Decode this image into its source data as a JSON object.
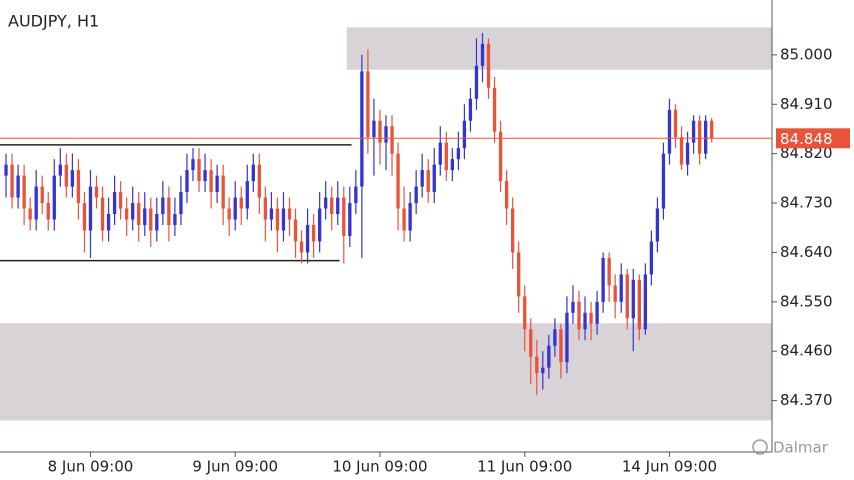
{
  "chart_data": {
    "type": "candlestick",
    "title": "AUDJPY, H1",
    "watermark": "Dalmar",
    "up_color": "#3434d0",
    "down_color": "#e8543a",
    "xlim": [
      -1,
      127
    ],
    "ylim": [
      84.28,
      85.1
    ],
    "xticks": [
      {
        "value": 14,
        "label": "8 Jun 09:00"
      },
      {
        "value": 38,
        "label": "9 Jun 09:00"
      },
      {
        "value": 62,
        "label": "10 Jun 09:00"
      },
      {
        "value": 86,
        "label": "11 Jun 09:00"
      },
      {
        "value": 110,
        "label": "14 Jun 09:00"
      }
    ],
    "yticks": [
      {
        "value": 85.0,
        "label": "85.000"
      },
      {
        "value": 84.91,
        "label": "84.910"
      },
      {
        "value": 84.82,
        "label": "84.820"
      },
      {
        "value": 84.73,
        "label": "84.730"
      },
      {
        "value": 84.64,
        "label": "84.640"
      },
      {
        "value": 84.55,
        "label": "84.550"
      },
      {
        "value": 84.46,
        "label": "84.460"
      },
      {
        "value": 84.37,
        "label": "84.370"
      }
    ],
    "last_price": {
      "value": 84.848,
      "label": "84.848"
    },
    "last_price_color": "#e8543a",
    "zones": [
      {
        "low": 84.973,
        "high": 85.05,
        "start": 56.5,
        "end": 127
      },
      {
        "low": 84.334,
        "high": 84.511,
        "start": -1,
        "end": 127
      }
    ],
    "zone_color": "#d8d3d7",
    "levels": [
      {
        "value": 84.836,
        "start": -1,
        "end": 57.3
      },
      {
        "value": 84.625,
        "start": -1,
        "end": 55.3
      }
    ],
    "candles": [
      [
        84.78,
        84.82,
        84.74,
        84.8
      ],
      [
        84.8,
        84.82,
        84.72,
        84.74
      ],
      [
        84.74,
        84.8,
        84.72,
        84.78
      ],
      [
        84.78,
        84.8,
        84.69,
        84.72
      ],
      [
        84.72,
        84.74,
        84.68,
        84.7
      ],
      [
        84.7,
        84.79,
        84.68,
        84.76
      ],
      [
        84.76,
        84.78,
        84.71,
        84.73
      ],
      [
        84.73,
        84.75,
        84.68,
        84.7
      ],
      [
        84.7,
        84.81,
        84.68,
        84.78
      ],
      [
        84.78,
        84.83,
        84.76,
        84.8
      ],
      [
        84.8,
        84.82,
        84.74,
        84.76
      ],
      [
        84.76,
        84.82,
        84.74,
        84.79
      ],
      [
        84.79,
        84.81,
        84.7,
        84.73
      ],
      [
        84.73,
        84.75,
        84.64,
        84.68
      ],
      [
        84.68,
        84.79,
        84.63,
        84.76
      ],
      [
        84.76,
        84.78,
        84.72,
        84.74
      ],
      [
        84.74,
        84.76,
        84.66,
        84.68
      ],
      [
        84.68,
        84.74,
        84.66,
        84.71
      ],
      [
        84.71,
        84.78,
        84.69,
        84.75
      ],
      [
        84.75,
        84.77,
        84.7,
        84.72
      ],
      [
        84.72,
        84.74,
        84.67,
        84.7
      ],
      [
        84.7,
        84.76,
        84.68,
        84.73
      ],
      [
        84.73,
        84.75,
        84.66,
        84.69
      ],
      [
        84.69,
        84.75,
        84.67,
        84.72
      ],
      [
        84.72,
        84.74,
        84.65,
        84.68
      ],
      [
        84.68,
        84.74,
        84.66,
        84.71
      ],
      [
        84.71,
        84.77,
        84.69,
        84.74
      ],
      [
        84.74,
        84.76,
        84.66,
        84.69
      ],
      [
        84.69,
        84.74,
        84.67,
        84.71
      ],
      [
        84.71,
        84.78,
        84.69,
        84.75
      ],
      [
        84.75,
        84.82,
        84.73,
        84.79
      ],
      [
        84.79,
        84.83,
        84.77,
        84.81
      ],
      [
        84.81,
        84.83,
        84.75,
        84.77
      ],
      [
        84.77,
        84.82,
        84.75,
        84.79
      ],
      [
        84.79,
        84.81,
        84.72,
        84.75
      ],
      [
        84.75,
        84.8,
        84.73,
        84.78
      ],
      [
        84.78,
        84.8,
        84.69,
        84.72
      ],
      [
        84.72,
        84.74,
        84.67,
        84.7
      ],
      [
        84.7,
        84.77,
        84.68,
        84.74
      ],
      [
        84.74,
        84.76,
        84.69,
        84.72
      ],
      [
        84.72,
        84.8,
        84.7,
        84.77
      ],
      [
        84.77,
        84.82,
        84.75,
        84.8
      ],
      [
        84.8,
        84.82,
        84.71,
        84.74
      ],
      [
        84.74,
        84.76,
        84.66,
        84.7
      ],
      [
        84.7,
        84.75,
        84.68,
        84.72
      ],
      [
        84.72,
        84.74,
        84.64,
        84.68
      ],
      [
        84.68,
        84.75,
        84.66,
        84.72
      ],
      [
        84.72,
        84.74,
        84.67,
        84.7
      ],
      [
        84.7,
        84.72,
        84.63,
        84.66
      ],
      [
        84.66,
        84.68,
        84.62,
        84.64
      ],
      [
        84.64,
        84.72,
        84.62,
        84.69
      ],
      [
        84.69,
        84.71,
        84.63,
        84.66
      ],
      [
        84.66,
        84.75,
        84.64,
        84.72
      ],
      [
        84.72,
        84.77,
        84.7,
        84.74
      ],
      [
        84.74,
        84.76,
        84.68,
        84.71
      ],
      [
        84.71,
        84.77,
        84.69,
        84.74
      ],
      [
        84.74,
        84.76,
        84.62,
        84.67
      ],
      [
        84.67,
        84.76,
        84.65,
        84.73
      ],
      [
        84.73,
        84.79,
        84.71,
        84.76
      ],
      [
        84.76,
        85.0,
        84.63,
        84.97
      ],
      [
        84.97,
        85.01,
        84.82,
        84.85
      ],
      [
        84.85,
        84.92,
        84.78,
        84.88
      ],
      [
        84.88,
        84.9,
        84.8,
        84.84
      ],
      [
        84.84,
        84.89,
        84.79,
        84.87
      ],
      [
        84.87,
        84.89,
        84.78,
        84.82
      ],
      [
        84.82,
        84.84,
        84.68,
        84.72
      ],
      [
        84.72,
        84.76,
        84.66,
        84.68
      ],
      [
        84.68,
        84.75,
        84.66,
        84.73
      ],
      [
        84.73,
        84.79,
        84.71,
        84.76
      ],
      [
        84.76,
        84.82,
        84.74,
        84.79
      ],
      [
        84.79,
        84.81,
        84.73,
        84.75
      ],
      [
        84.75,
        84.83,
        84.73,
        84.8
      ],
      [
        84.8,
        84.87,
        84.78,
        84.84
      ],
      [
        84.84,
        84.86,
        84.77,
        84.79
      ],
      [
        84.79,
        84.83,
        84.77,
        84.81
      ],
      [
        84.81,
        84.86,
        84.79,
        84.83
      ],
      [
        84.83,
        84.91,
        84.81,
        84.88
      ],
      [
        84.88,
        84.94,
        84.86,
        84.92
      ],
      [
        84.92,
        85.03,
        84.9,
        84.98
      ],
      [
        84.98,
        85.04,
        84.95,
        85.02
      ],
      [
        85.02,
        85.03,
        84.92,
        84.94
      ],
      [
        84.94,
        84.96,
        84.84,
        84.86
      ],
      [
        84.86,
        84.88,
        84.75,
        84.77
      ],
      [
        84.77,
        84.79,
        84.69,
        84.72
      ],
      [
        84.72,
        84.74,
        84.61,
        84.64
      ],
      [
        84.64,
        84.66,
        84.53,
        84.56
      ],
      [
        84.56,
        84.58,
        84.46,
        84.5
      ],
      [
        84.5,
        84.52,
        84.4,
        84.45
      ],
      [
        84.45,
        84.48,
        84.38,
        84.42
      ],
      [
        84.42,
        84.46,
        84.39,
        84.43
      ],
      [
        84.43,
        84.49,
        84.41,
        84.47
      ],
      [
        84.47,
        84.52,
        84.45,
        84.5
      ],
      [
        84.5,
        84.51,
        84.41,
        84.44
      ],
      [
        84.44,
        84.56,
        84.42,
        84.53
      ],
      [
        84.53,
        84.58,
        84.51,
        84.55
      ],
      [
        84.55,
        84.57,
        84.48,
        84.5
      ],
      [
        84.5,
        84.56,
        84.48,
        84.53
      ],
      [
        84.53,
        84.55,
        84.48,
        84.51
      ],
      [
        84.51,
        84.57,
        84.49,
        84.55
      ],
      [
        84.55,
        84.64,
        84.53,
        84.63
      ],
      [
        84.63,
        84.64,
        84.55,
        84.58
      ],
      [
        84.58,
        84.6,
        84.52,
        84.55
      ],
      [
        84.55,
        84.62,
        84.53,
        84.6
      ],
      [
        84.6,
        84.61,
        84.5,
        84.52
      ],
      [
        84.52,
        84.61,
        84.46,
        84.59
      ],
      [
        84.59,
        84.6,
        84.48,
        84.5
      ],
      [
        84.5,
        84.62,
        84.49,
        84.6
      ],
      [
        84.6,
        84.68,
        84.58,
        84.66
      ],
      [
        84.66,
        84.74,
        84.64,
        84.72
      ],
      [
        84.72,
        84.84,
        84.7,
        84.82
      ],
      [
        84.82,
        84.92,
        84.8,
        84.9
      ],
      [
        84.9,
        84.91,
        84.83,
        84.85
      ],
      [
        84.85,
        84.87,
        84.79,
        84.8
      ],
      [
        84.8,
        84.86,
        84.78,
        84.84
      ],
      [
        84.84,
        84.89,
        84.82,
        84.88
      ],
      [
        84.88,
        84.89,
        84.8,
        84.82
      ],
      [
        84.82,
        84.89,
        84.81,
        84.88
      ],
      [
        84.88,
        84.885,
        84.84,
        84.848
      ]
    ]
  }
}
